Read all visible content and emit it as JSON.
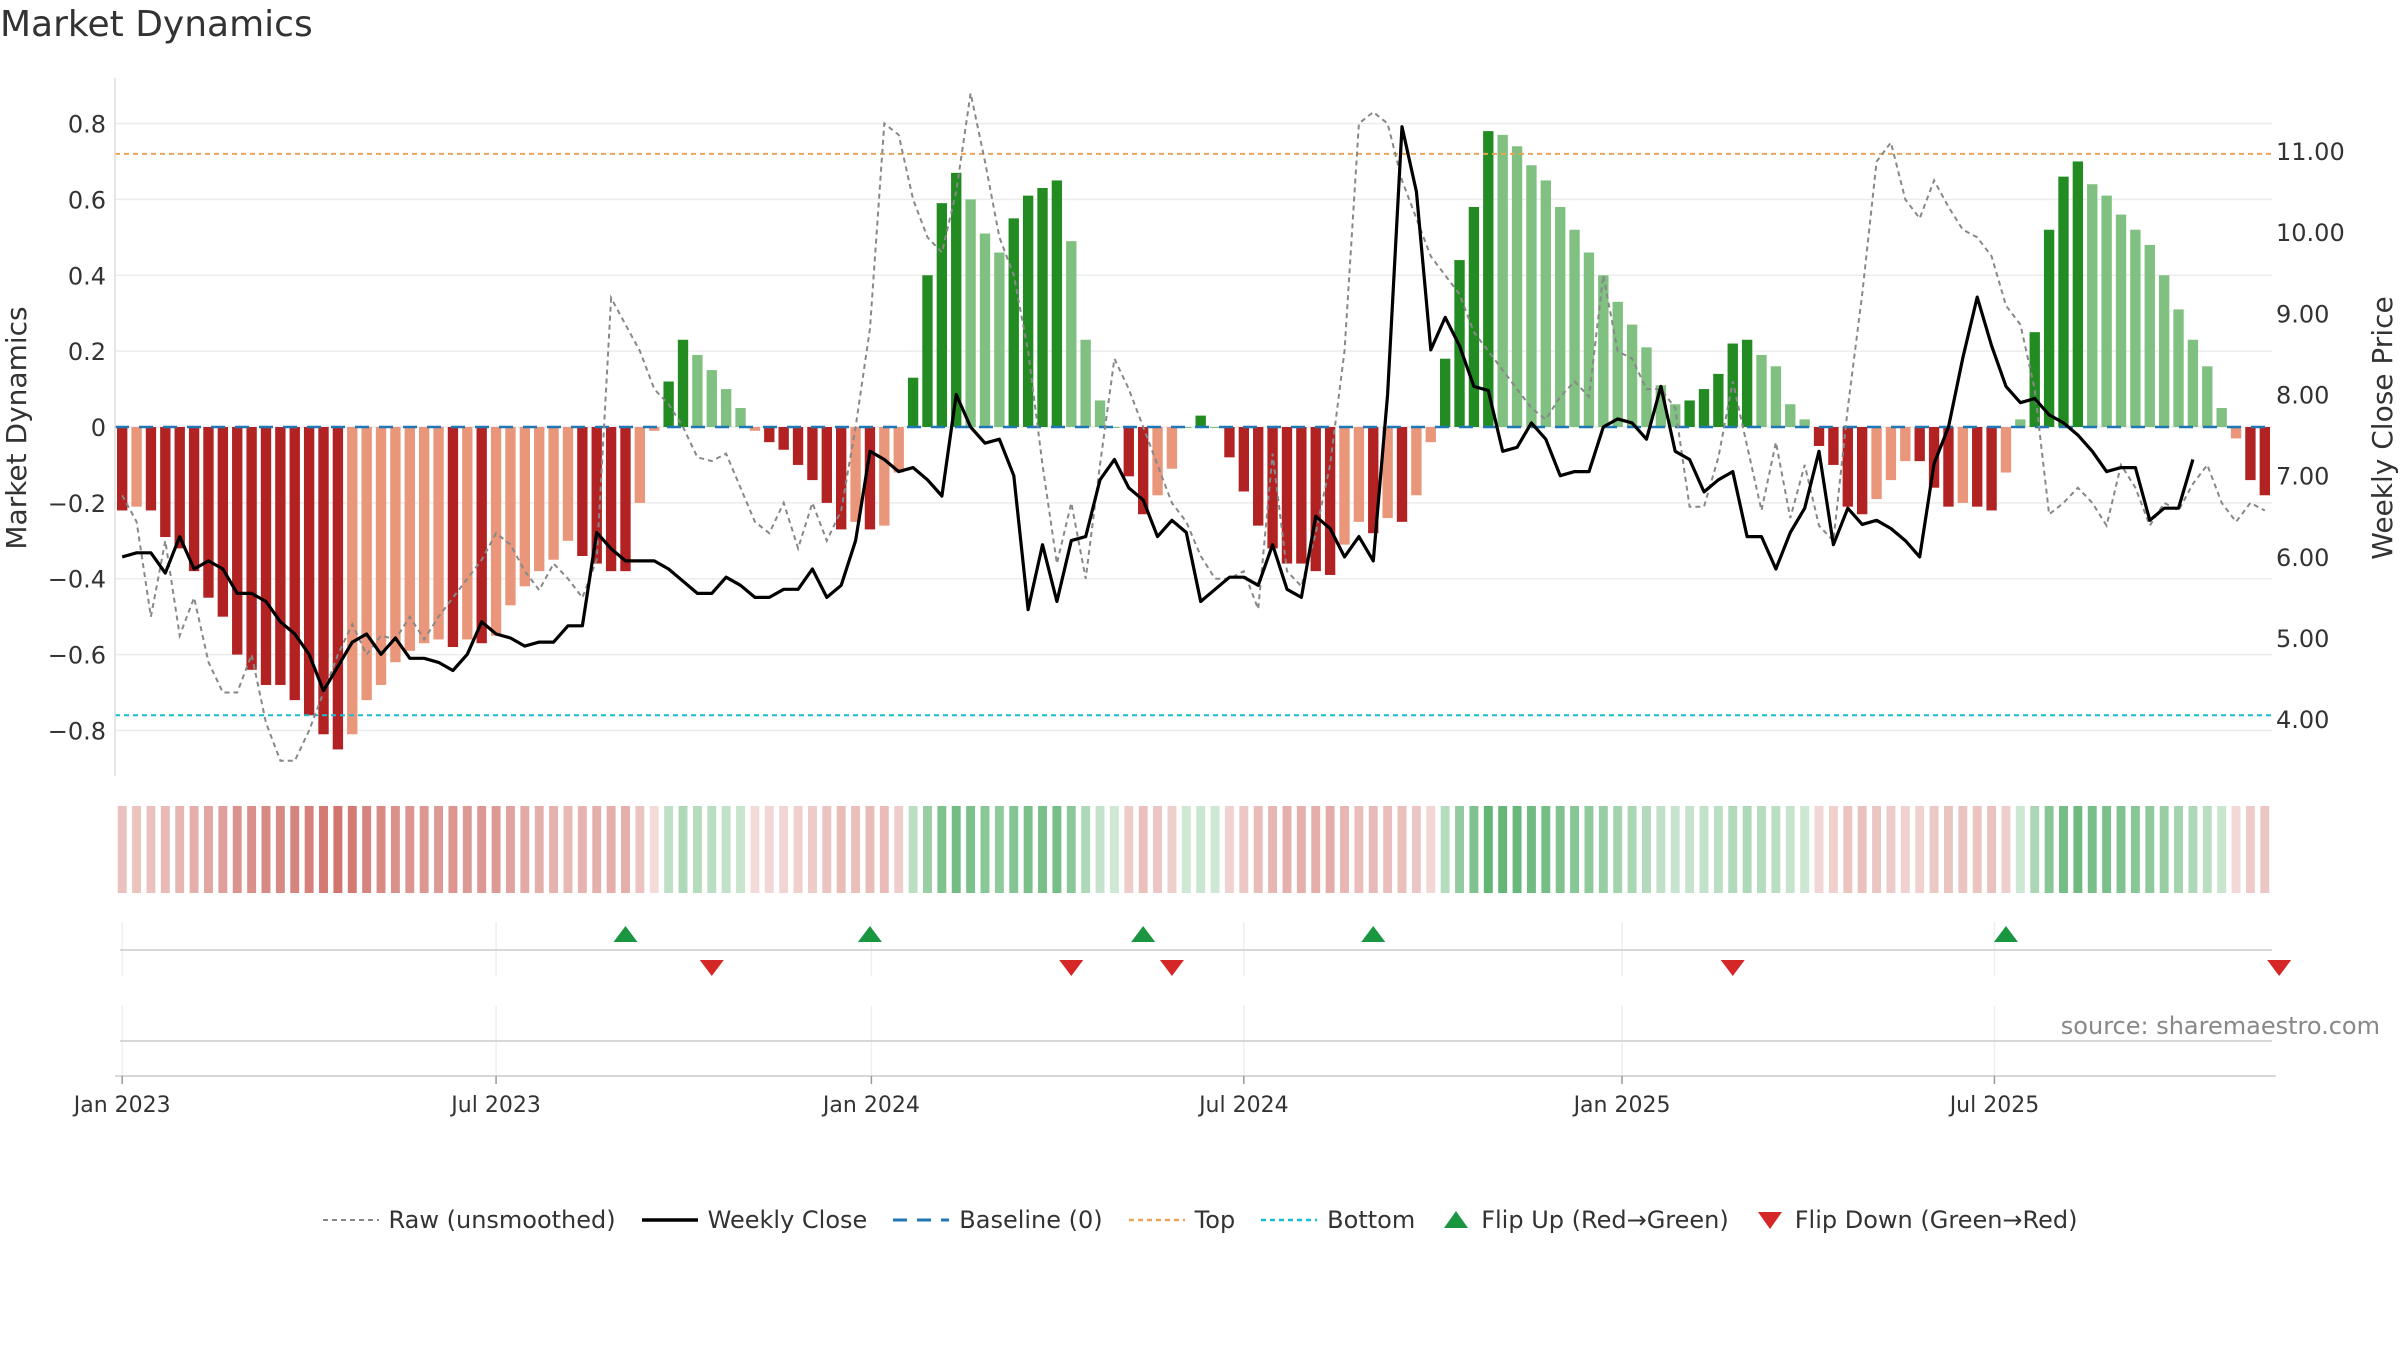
{
  "chart_data": {
    "type": "bar",
    "title": "Market Dynamics",
    "ylabel": "Market Dynamics",
    "y2label": "Weekly Close Price",
    "ylim": [
      -0.92,
      0.92
    ],
    "y2lim": [
      3.3,
      11.9
    ],
    "yticks": [
      -0.8,
      -0.6,
      -0.4,
      -0.2,
      0,
      0.2,
      0.4,
      0.6,
      0.8
    ],
    "ytick_labels": [
      "−0.8",
      "−0.6",
      "−0.4",
      "−0.2",
      "0",
      "0.2",
      "0.4",
      "0.6",
      "0.8"
    ],
    "y2ticks": [
      4.0,
      5.0,
      6.0,
      7.0,
      8.0,
      9.0,
      10.0,
      11.0
    ],
    "y2tick_labels": [
      "4.00",
      "5.00",
      "6.00",
      "7.00",
      "8.00",
      "9.00",
      "10.00",
      "11.00"
    ],
    "xticks": [
      "Jan 2023",
      "Jul 2023",
      "Jan 2024",
      "Jul 2024",
      "Jan 2025",
      "Jul 2025"
    ],
    "xtick_weeks": [
      0.5,
      26.5,
      52.6,
      78.5,
      104.8,
      130.7
    ],
    "top_line": 0.72,
    "bottom_line": -0.76,
    "grid": true,
    "legend_position": "bottom-center",
    "source": "source: sharemaestro.com",
    "colors": {
      "red_strong": "#b22222",
      "red_light": "#e9967a",
      "green_strong": "#228b22",
      "green_light": "#80c080",
      "raw": "#888888",
      "close": "#000000",
      "baseline": "#1f77b4",
      "top": "#e8a55a",
      "bottom": "#17becf",
      "flip_up": "#1a9641",
      "flip_down": "#d62728"
    },
    "series": [
      {
        "name": "Market Dynamics",
        "values": [
          -0.22,
          -0.21,
          -0.22,
          -0.29,
          -0.32,
          -0.38,
          -0.45,
          -0.5,
          -0.6,
          -0.64,
          -0.68,
          -0.68,
          -0.72,
          -0.76,
          -0.81,
          -0.85,
          -0.81,
          -0.72,
          -0.68,
          -0.62,
          -0.59,
          -0.57,
          -0.56,
          -0.58,
          -0.56,
          -0.57,
          -0.55,
          -0.47,
          -0.42,
          -0.38,
          -0.35,
          -0.3,
          -0.34,
          -0.36,
          -0.38,
          -0.38,
          -0.2,
          -0.01,
          0.12,
          0.23,
          0.19,
          0.15,
          0.1,
          0.05,
          -0.01,
          -0.04,
          -0.06,
          -0.1,
          -0.14,
          -0.2,
          -0.27,
          -0.25,
          -0.27,
          -0.26,
          -0.12,
          0.13,
          0.4,
          0.59,
          0.67,
          0.6,
          0.51,
          0.46,
          0.55,
          0.61,
          0.63,
          0.65,
          0.49,
          0.23,
          0.07,
          0.0,
          -0.13,
          -0.23,
          -0.18,
          -0.11,
          0.0,
          0.03,
          0.0,
          -0.08,
          -0.17,
          -0.26,
          -0.32,
          -0.36,
          -0.36,
          -0.38,
          -0.39,
          -0.31,
          -0.25,
          -0.28,
          -0.24,
          -0.25,
          -0.18,
          -0.04,
          0.18,
          0.44,
          0.58,
          0.78,
          0.77,
          0.74,
          0.69,
          0.65,
          0.58,
          0.52,
          0.46,
          0.4,
          0.33,
          0.27,
          0.21,
          0.11,
          0.06,
          0.07,
          0.1,
          0.14,
          0.22,
          0.23,
          0.19,
          0.16,
          0.06,
          0.02,
          -0.05,
          -0.1,
          -0.21,
          -0.23,
          -0.19,
          -0.14,
          -0.09,
          -0.09,
          -0.16,
          -0.21,
          -0.2,
          -0.21,
          -0.22,
          -0.12,
          0.02,
          0.25,
          0.52,
          0.66,
          0.7,
          0.64,
          0.61,
          0.56,
          0.52,
          0.48,
          0.4,
          0.31,
          0.23,
          0.16,
          0.05,
          -0.03,
          -0.14,
          -0.18
        ]
      },
      {
        "name": "Raw (unsmoothed)",
        "values": [
          -0.18,
          -0.25,
          -0.5,
          -0.3,
          -0.55,
          -0.45,
          -0.62,
          -0.7,
          -0.7,
          -0.6,
          -0.78,
          -0.88,
          -0.88,
          -0.8,
          -0.7,
          -0.6,
          -0.52,
          -0.6,
          -0.55,
          -0.56,
          -0.5,
          -0.56,
          -0.5,
          -0.45,
          -0.4,
          -0.35,
          -0.28,
          -0.31,
          -0.38,
          -0.43,
          -0.36,
          -0.4,
          -0.45,
          -0.35,
          0.34,
          0.27,
          0.2,
          0.1,
          0.06,
          0.0,
          -0.08,
          -0.09,
          -0.07,
          -0.16,
          -0.25,
          -0.28,
          -0.2,
          -0.32,
          -0.2,
          -0.3,
          -0.22,
          0.0,
          0.26,
          0.8,
          0.77,
          0.6,
          0.5,
          0.46,
          0.62,
          0.88,
          0.7,
          0.5,
          0.4,
          0.2,
          -0.1,
          -0.36,
          -0.2,
          -0.4,
          -0.1,
          0.18,
          0.1,
          0.0,
          -0.1,
          -0.2,
          -0.25,
          -0.34,
          -0.4,
          -0.4,
          -0.38,
          -0.48,
          -0.07,
          -0.38,
          -0.42,
          -0.28,
          -0.1,
          0.2,
          0.8,
          0.83,
          0.8,
          0.65,
          0.55,
          0.45,
          0.4,
          0.35,
          0.25,
          0.2,
          0.15,
          0.1,
          0.05,
          0.02,
          0.08,
          0.12,
          0.08,
          0.4,
          0.2,
          0.18,
          0.1,
          0.1,
          0.05,
          -0.21,
          -0.21,
          -0.08,
          0.12,
          -0.05,
          -0.22,
          -0.04,
          -0.24,
          -0.1,
          -0.26,
          -0.3,
          0.05,
          0.35,
          0.7,
          0.75,
          0.6,
          0.55,
          0.65,
          0.58,
          0.52,
          0.5,
          0.45,
          0.32,
          0.27,
          0.1,
          -0.23,
          -0.2,
          -0.16,
          -0.2,
          -0.26,
          -0.1,
          -0.16,
          -0.26,
          -0.2,
          -0.22,
          -0.15,
          -0.1,
          -0.2,
          -0.25,
          -0.2,
          -0.22
        ]
      },
      {
        "name": "Weekly Close",
        "values": [
          6.0,
          6.05,
          6.05,
          5.8,
          6.25,
          5.85,
          5.95,
          5.85,
          5.55,
          5.55,
          5.45,
          5.2,
          5.05,
          4.8,
          4.35,
          4.65,
          4.95,
          5.05,
          4.8,
          5.0,
          4.75,
          4.75,
          4.7,
          4.6,
          4.8,
          5.2,
          5.05,
          5.0,
          4.9,
          4.95,
          4.95,
          5.15,
          5.15,
          6.3,
          6.1,
          5.95,
          5.95,
          5.95,
          5.85,
          5.7,
          5.55,
          5.55,
          5.75,
          5.65,
          5.5,
          5.5,
          5.6,
          5.6,
          5.85,
          5.5,
          5.65,
          6.2,
          7.3,
          7.2,
          7.05,
          7.1,
          6.95,
          6.75,
          8.0,
          7.6,
          7.4,
          7.45,
          7.0,
          5.35,
          6.15,
          5.45,
          6.2,
          6.25,
          6.95,
          7.2,
          6.85,
          6.7,
          6.25,
          6.45,
          6.3,
          5.45,
          5.6,
          5.75,
          5.75,
          5.65,
          6.15,
          5.6,
          5.5,
          6.5,
          6.35,
          6.0,
          6.25,
          5.95,
          8.0,
          11.3,
          10.5,
          8.55,
          8.95,
          8.6,
          8.1,
          8.05,
          7.3,
          7.35,
          7.65,
          7.45,
          7.0,
          7.05,
          7.05,
          7.6,
          7.7,
          7.65,
          7.45,
          8.1,
          7.3,
          7.2,
          6.8,
          6.95,
          7.05,
          6.25,
          6.25,
          5.85,
          6.3,
          6.6,
          7.3,
          6.15,
          6.6,
          6.4,
          6.45,
          6.35,
          6.2,
          6.0,
          7.15,
          7.6,
          8.45,
          9.2,
          8.6,
          8.1,
          7.9,
          7.95,
          7.75,
          7.65,
          7.5,
          7.3,
          7.05,
          7.1,
          7.1,
          6.45,
          6.6,
          6.6,
          7.2
        ]
      }
    ],
    "flip_up_weeks": [
      35,
      52,
      71,
      87,
      131
    ],
    "flip_down_weeks": [
      41,
      66,
      73,
      112,
      150
    ],
    "legend": [
      "Raw (unsmoothed)",
      "Weekly Close",
      "Baseline (0)",
      "Top",
      "Bottom",
      "Flip Up (Red→Green)",
      "Flip Down (Green→Red)"
    ]
  }
}
